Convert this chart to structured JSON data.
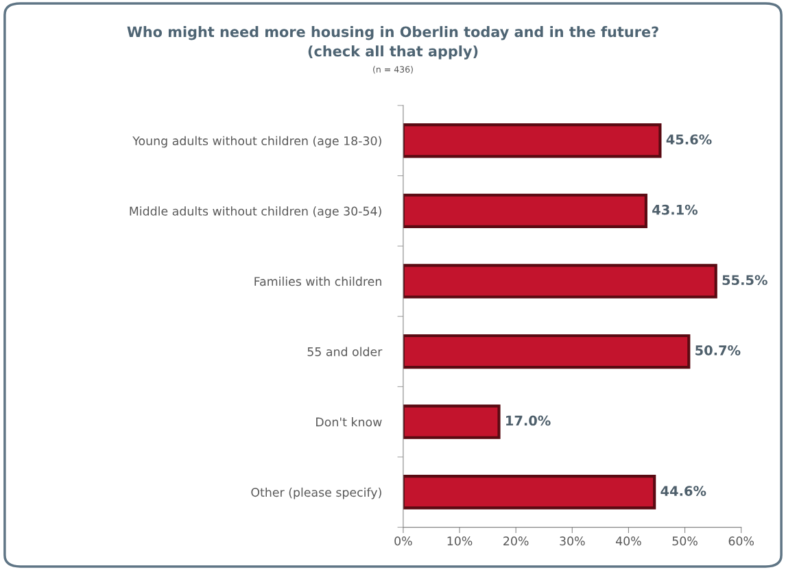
{
  "chart_data": {
    "type": "bar",
    "orientation": "horizontal",
    "title": "Who might need more housing in Oberlin today and in the future?\n(check all that apply)",
    "subtitle": "(n = 436)",
    "categories": [
      "Young adults without children (age 18-30)",
      "Middle adults without children (age 30-54)",
      "Families with children",
      "55 and older",
      "Don't know",
      "Other (please specify)"
    ],
    "values": [
      45.6,
      43.1,
      55.5,
      50.7,
      17.0,
      44.6
    ],
    "value_labels": [
      "45.6%",
      "43.1%",
      "55.5%",
      "50.7%",
      "17.0%",
      "44.6%"
    ],
    "color": "#c3142d",
    "xlim": [
      0,
      60
    ],
    "xticks": [
      {
        "value": 0,
        "label": "0%"
      },
      {
        "value": 10,
        "label": "10%"
      },
      {
        "value": 20,
        "label": "20%"
      },
      {
        "value": 30,
        "label": "30%"
      },
      {
        "value": 40,
        "label": "40%"
      },
      {
        "value": 50,
        "label": "50%"
      },
      {
        "value": 60,
        "label": "60%"
      }
    ],
    "grid": false,
    "legend": false
  }
}
